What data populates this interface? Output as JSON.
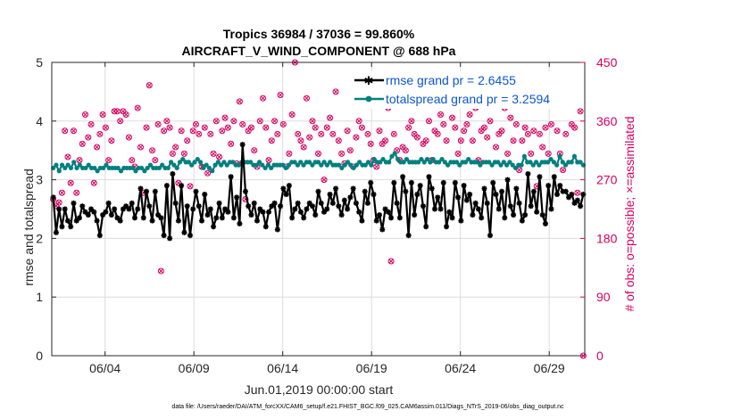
{
  "chart_data": {
    "type": "line",
    "title_line1": "Tropics 36984 / 37036 = 99.860%",
    "title_line2": "AIRCRAFT_V_WIND_COMPONENT @ 688 hPa",
    "xlabel": "Jun.01,2019 00:00:00 start",
    "ylabel": "rmse and totalspread",
    "ylabel_right": "# of obs: o=possible; ×=assimilated",
    "footer": "data file: /Users/raeder/DAI/ATM_forcXX/CAM6_setup/f.e21.FHIST_BGC.f09_025.CAM6assim.011/Diags_NTrS_2019-06/obs_diag_output.nc",
    "x_range": [
      1.0,
      31.0
    ],
    "ylim": [
      0,
      5
    ],
    "ylim_right": [
      0,
      450
    ],
    "x_ticks": [
      4,
      9,
      14,
      19,
      24,
      29
    ],
    "x_tick_labels": [
      "06/04",
      "06/09",
      "06/14",
      "06/19",
      "06/24",
      "06/29"
    ],
    "y_ticks": [
      0,
      1,
      2,
      3,
      4,
      5
    ],
    "y_tick_labels": [
      "0",
      "1",
      "2",
      "3",
      "4",
      "5"
    ],
    "y_ticks_right": [
      0,
      90,
      180,
      270,
      360,
      450
    ],
    "y_tick_labels_right": [
      "0",
      "90",
      "180",
      "270",
      "360",
      "450"
    ],
    "legend_position": "top-right",
    "colors": {
      "rmse": "#000000",
      "spread": "#00807f",
      "obs": "#d6005f",
      "axes": "#262626",
      "legend_text": "#0b57d0"
    },
    "series": [
      {
        "name": "rmse grand pr = 2.6455",
        "values": [
          2.7,
          2.1,
          2.5,
          2.2,
          2.5,
          2.3,
          2.2,
          2.6,
          2.3,
          2.35,
          2.55,
          2.45,
          2.4,
          2.5,
          2.45,
          2.3,
          2.05,
          2.4,
          2.45,
          2.6,
          2.4,
          2.5,
          2.35,
          2.3,
          2.5,
          2.55,
          2.5,
          2.6,
          2.35,
          2.5,
          2.85,
          2.35,
          2.8,
          2.55,
          2.3,
          2.8,
          2.4,
          2.35,
          2.05,
          2.9,
          2.0,
          3.1,
          2.6,
          2.3,
          2.9,
          2.1,
          2.55,
          2.05,
          2.5,
          2.8,
          2.55,
          2.3,
          2.75,
          2.4,
          2.5,
          2.2,
          2.35,
          2.6,
          2.35,
          2.5,
          2.45,
          3.05,
          2.35,
          2.7,
          2.25,
          3.6,
          2.8,
          2.55,
          2.4,
          2.6,
          2.3,
          2.5,
          2.45,
          2.2,
          2.45,
          2.55,
          2.6,
          2.15,
          2.55,
          2.85,
          2.75,
          2.9,
          2.35,
          2.5,
          2.6,
          2.45,
          2.35,
          2.5,
          2.6,
          2.55,
          2.4,
          2.8,
          2.6,
          2.45,
          2.5,
          2.75,
          2.6,
          2.85,
          2.55,
          2.4,
          2.65,
          2.5,
          2.7,
          2.85,
          2.6,
          2.45,
          2.3,
          2.8,
          2.6,
          2.95,
          2.75,
          2.3,
          2.4,
          2.15,
          2.5,
          2.45,
          2.35,
          2.95,
          2.6,
          2.35,
          3.05,
          2.8,
          2.05,
          2.95,
          2.4,
          2.75,
          2.9,
          2.55,
          2.2,
          3.05,
          2.85,
          2.5,
          2.7,
          2.5,
          2.95,
          2.2,
          2.45,
          2.35,
          2.95,
          2.7,
          2.3,
          2.9,
          2.65,
          2.75,
          2.4,
          2.6,
          2.5,
          2.35,
          2.85,
          2.6,
          2.05,
          2.95,
          2.75,
          2.5,
          2.8,
          2.35,
          3.0,
          2.55,
          2.4,
          2.85,
          2.6,
          2.3,
          2.4,
          3.1,
          2.55,
          2.8,
          2.45,
          3.05,
          2.4,
          2.25,
          2.9,
          2.5,
          3.05,
          2.75,
          2.9,
          2.8,
          2.8,
          2.7,
          2.75,
          2.6,
          2.65,
          2.55,
          2.75
        ]
      },
      {
        "name": "totalspread grand pr = 3.2594",
        "values": [
          3.2,
          3.25,
          3.15,
          3.25,
          3.2,
          3.25,
          3.2,
          3.3,
          3.2,
          3.25,
          3.2,
          3.2,
          3.25,
          3.2,
          3.2,
          3.15,
          3.2,
          3.2,
          3.25,
          3.2,
          3.2,
          3.2,
          3.2,
          3.15,
          3.2,
          3.2,
          3.2,
          3.2,
          3.15,
          3.2,
          3.2,
          3.15,
          3.2,
          3.25,
          3.2,
          3.2,
          3.2,
          3.25,
          3.2,
          3.2,
          3.3,
          3.25,
          3.2,
          3.3,
          3.35,
          3.3,
          3.3,
          3.25,
          3.3,
          3.35,
          3.3,
          3.2,
          3.25,
          3.2,
          3.15,
          3.25,
          3.3,
          3.25,
          3.3,
          3.25,
          3.3,
          3.3,
          3.25,
          3.25,
          3.3,
          3.3,
          3.3,
          3.3,
          3.25,
          3.25,
          3.3,
          3.25,
          3.2,
          3.25,
          3.2,
          3.25,
          3.25,
          3.25,
          3.25,
          3.2,
          3.25,
          3.3,
          3.3,
          3.25,
          3.3,
          3.25,
          3.3,
          3.3,
          3.25,
          3.3,
          3.3,
          3.25,
          3.3,
          3.25,
          3.3,
          3.25,
          3.25,
          3.25,
          3.2,
          3.25,
          3.3,
          3.25,
          3.2,
          3.25,
          3.3,
          3.25,
          3.25,
          3.3,
          3.25,
          3.35,
          3.3,
          3.3,
          3.35,
          3.3,
          3.3,
          3.4,
          3.45,
          3.35,
          3.3,
          3.3,
          3.35,
          3.3,
          3.3,
          3.3,
          3.3,
          3.35,
          3.3,
          3.35,
          3.3,
          3.35,
          3.3,
          3.3,
          3.35,
          3.3,
          3.25,
          3.3,
          3.3,
          3.3,
          3.25,
          3.3,
          3.3,
          3.35,
          3.3,
          3.3,
          3.3,
          3.25,
          3.3,
          3.3,
          3.3,
          3.25,
          3.3,
          3.3,
          3.25,
          3.3,
          3.25,
          3.3,
          3.25,
          3.2,
          3.25,
          3.25,
          3.4,
          3.3,
          3.3,
          3.25,
          3.3,
          3.25,
          3.3,
          3.3,
          3.3,
          3.35,
          3.3,
          3.25,
          3.4,
          3.3,
          3.25,
          3.3,
          3.3,
          3.4,
          3.3,
          3.3,
          3.25
        ]
      }
    ],
    "obs_counts": {
      "name": "# of obs",
      "values": [
        240,
        230,
        235,
        250,
        345,
        305,
        265,
        345,
        250,
        300,
        325,
        370,
        335,
        355,
        265,
        320,
        340,
        370,
        350,
        300,
        330,
        375,
        375,
        360,
        375,
        370,
        335,
        300,
        290,
        380,
        320,
        250,
        350,
        415,
        315,
        300,
        355,
        130,
        345,
        360,
        350,
        310,
        320,
        265,
        345,
        310,
        330,
        260,
        345,
        355,
        340,
        290,
        350,
        280,
        340,
        310,
        360,
        305,
        345,
        365,
        350,
        325,
        360,
        295,
        390,
        355,
        240,
        345,
        350,
        315,
        290,
        360,
        395,
        350,
        300,
        330,
        360,
        340,
        400,
        355,
        290,
        310,
        370,
        450,
        340,
        330,
        320,
        395,
        335,
        360,
        350,
        310,
        340,
        270,
        350,
        365,
        340,
        405,
        330,
        310,
        295,
        345,
        315,
        290,
        335,
        360,
        350,
        385,
        340,
        325,
        300,
        290,
        345,
        325,
        330,
        380,
        145,
        340,
        315,
        300,
        320,
        315,
        350,
        360,
        340,
        335,
        420,
        325,
        330,
        360,
        300,
        345,
        340,
        370,
        355,
        330,
        410,
        365,
        350,
        310,
        330,
        345,
        355,
        370,
        330,
        380,
        300,
        345,
        350,
        335,
        360,
        400,
        320,
        340,
        345,
        380,
        310,
        365,
        330,
        355,
        285,
        330,
        350,
        340,
        310,
        345,
        260,
        340,
        320,
        350,
        310,
        355,
        395,
        345,
        310,
        285,
        340,
        385,
        355,
        350,
        250,
        375,
        0
      ]
    }
  }
}
